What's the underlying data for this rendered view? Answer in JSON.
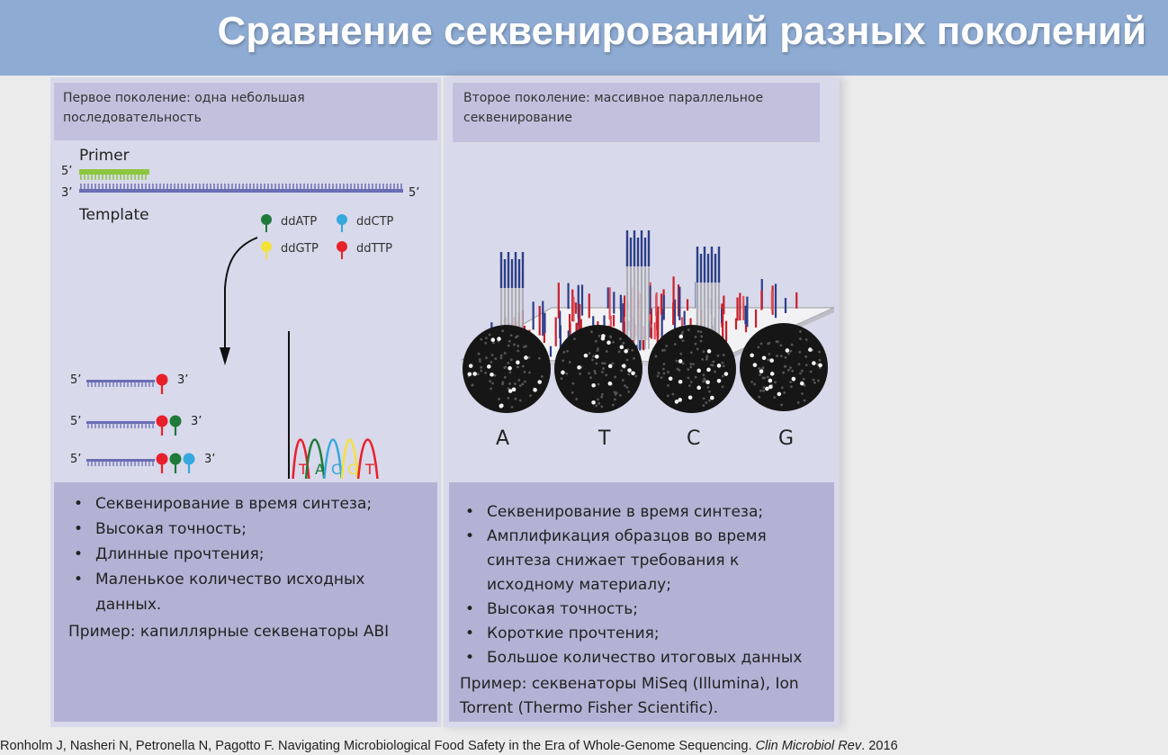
{
  "slide": {
    "title": "Сравнение секвенирований разных поколений"
  },
  "first_gen": {
    "header": "Первое поколение: одна небольшая последовательность",
    "diagram": {
      "primer_label": "Primer",
      "template_label": "Template",
      "five_prime": "5’",
      "three_prime": "3’",
      "ddntps": [
        "ddATP",
        "ddCTP",
        "ddGTP",
        "ddTTP"
      ],
      "trace_letters": [
        "T",
        "A",
        "C",
        "G",
        "T"
      ],
      "colors": {
        "A": "#1f7a3a",
        "C": "#35a8dd",
        "G": "#f4e23a",
        "T": "#e8202a",
        "primer": "#8cc63f",
        "template": "#6a6db4"
      }
    },
    "bullets": [
      "Секвенирование в время синтеза;",
      "Высокая точность;",
      "Длинные прочтения;",
      "Маленькое количество исходных данных."
    ],
    "example": "Пример: капиллярные секвенаторы ABI"
  },
  "second_gen": {
    "header": "Второе поколение: массивное параллельное секвенирование",
    "flowcell_letters": [
      "A",
      "T",
      "C",
      "G"
    ],
    "bullets": [
      "Секвенирование в время синтеза;",
      "Амплификация образцов во время синтеза снижает требования к исходному материалу;",
      "Высокая точность;",
      "Короткие прочтения;",
      "Большое количество итоговых данных"
    ],
    "example": "Пример: секвенаторы MiSeq (Illumina), Ion Torrent (Thermo Fisher Scientific)."
  },
  "citation": {
    "authors_title": "Ronholm J, Nasheri N, Petronella N, Pagotto F. Navigating Microbiological Food Safety in the Era of Whole-Genome Sequencing.",
    "journal": "Clin Microbiol Rev",
    "year": ". 2016"
  }
}
